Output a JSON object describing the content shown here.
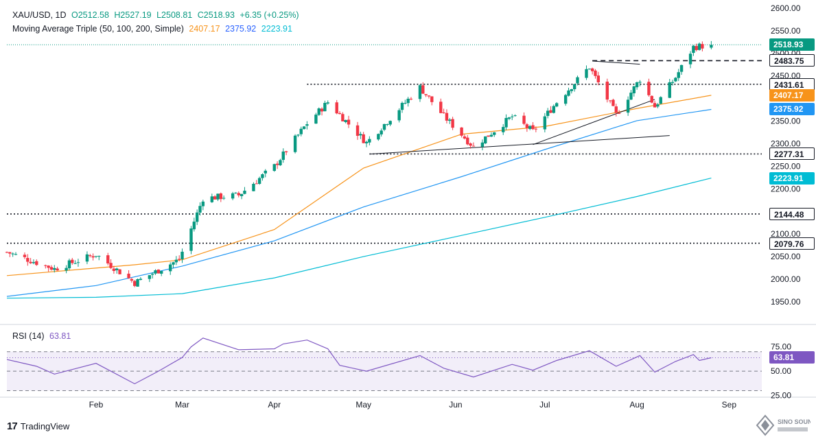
{
  "header": {
    "symbol": "XAU/USD, 1D",
    "open": "O2512.58",
    "high": "H2527.19",
    "low": "L2508.81",
    "close": "C2518.93",
    "change": "+6.35 (+0.25%)",
    "indicator": "Moving Average Triple (50, 100, 200, Simple)",
    "ma50": "2407.17",
    "ma100": "2375.92",
    "ma200": "2223.91"
  },
  "rsi_header": {
    "label": "RSI (14)",
    "value": "63.81"
  },
  "badges": [
    {
      "text": "2518.93",
      "price": 2518.93,
      "bg": "#089981",
      "fg": "#ffffff"
    },
    {
      "text": "2483.75",
      "price": 2483.75,
      "bg": "#ffffff",
      "fg": "#131722",
      "border": "#131722"
    },
    {
      "text": "2431.61",
      "price": 2431.61,
      "bg": "#ffffff",
      "fg": "#131722",
      "border": "#131722"
    },
    {
      "text": "2407.17",
      "price": 2407.17,
      "bg": "#f7931a",
      "fg": "#ffffff"
    },
    {
      "text": "2375.92",
      "price": 2375.92,
      "bg": "#2196f3",
      "fg": "#ffffff"
    },
    {
      "text": "2277.31",
      "price": 2277.31,
      "bg": "#ffffff",
      "fg": "#131722",
      "border": "#131722"
    },
    {
      "text": "2223.91",
      "price": 2223.91,
      "bg": "#00bcd4",
      "fg": "#ffffff"
    },
    {
      "text": "2144.48",
      "price": 2144.48,
      "bg": "#ffffff",
      "fg": "#131722",
      "border": "#131722"
    },
    {
      "text": "2079.76",
      "price": 2079.76,
      "bg": "#ffffff",
      "fg": "#131722",
      "border": "#131722"
    }
  ],
  "rsi_badge": {
    "text": "63.81",
    "value": 63.81,
    "bg": "#7e57c2",
    "fg": "#ffffff"
  },
  "footer": {
    "brand": "TradingView",
    "logo_text": "SINO SOUND"
  },
  "colors": {
    "up": "#089981",
    "down": "#f23645",
    "ma50": "#f7931a",
    "ma100": "#2196f3",
    "ma200": "#00bcd4",
    "rsi": "#7e57c2"
  },
  "chart_data": {
    "type": "candlestick",
    "y_ticks": [
      1950,
      2000,
      2050,
      2100,
      2150,
      2200,
      2250,
      2300,
      2350,
      2400,
      2450,
      2500,
      2550,
      2600
    ],
    "y_tick_labels": [
      "1950.00",
      "2000.00",
      "2050.00",
      "2100.00",
      "2150.00",
      "2200.00",
      "2250.00",
      "2300.00",
      "2350.00",
      "2400.00",
      "2450.00",
      "2500.00",
      "2550.00",
      "2600.00"
    ],
    "ylim": [
      1912,
      2612
    ],
    "x_labels": [
      "Feb",
      "Mar",
      "Apr",
      "May",
      "Jun",
      "Jul",
      "Aug",
      "Sep"
    ],
    "x_label_dates": [
      "2024-02-01",
      "2024-03-01",
      "2024-04-01",
      "2024-05-01",
      "2024-06-01",
      "2024-07-01",
      "2024-08-01",
      "2024-09-01"
    ],
    "date_range": [
      "2024-01-02",
      "2024-09-12"
    ],
    "key_closes": [
      {
        "date": "2024-01-02",
        "close": 2060
      },
      {
        "date": "2024-01-18",
        "close": 2023
      },
      {
        "date": "2024-02-01",
        "close": 2055
      },
      {
        "date": "2024-02-14",
        "close": 1992
      },
      {
        "date": "2024-02-29",
        "close": 2044
      },
      {
        "date": "2024-03-08",
        "close": 2179
      },
      {
        "date": "2024-03-20",
        "close": 2186
      },
      {
        "date": "2024-04-01",
        "close": 2250
      },
      {
        "date": "2024-04-12",
        "close": 2345
      },
      {
        "date": "2024-04-19",
        "close": 2392
      },
      {
        "date": "2024-05-02",
        "close": 2302
      },
      {
        "date": "2024-05-20",
        "close": 2425
      },
      {
        "date": "2024-05-28",
        "close": 2361
      },
      {
        "date": "2024-06-07",
        "close": 2293
      },
      {
        "date": "2024-06-20",
        "close": 2360
      },
      {
        "date": "2024-06-27",
        "close": 2327
      },
      {
        "date": "2024-07-05",
        "close": 2392
      },
      {
        "date": "2024-07-16",
        "close": 2470
      },
      {
        "date": "2024-07-25",
        "close": 2364
      },
      {
        "date": "2024-08-02",
        "close": 2443
      },
      {
        "date": "2024-08-07",
        "close": 2382
      },
      {
        "date": "2024-08-14",
        "close": 2447
      },
      {
        "date": "2024-08-20",
        "close": 2514
      },
      {
        "date": "2024-08-26",
        "close": 2518.93
      }
    ],
    "ma50_points": [
      {
        "date": "2024-01-02",
        "v": 2008
      },
      {
        "date": "2024-02-14",
        "v": 2032
      },
      {
        "date": "2024-03-01",
        "v": 2043
      },
      {
        "date": "2024-04-01",
        "v": 2110
      },
      {
        "date": "2024-05-01",
        "v": 2246
      },
      {
        "date": "2024-06-03",
        "v": 2321
      },
      {
        "date": "2024-07-01",
        "v": 2338
      },
      {
        "date": "2024-08-01",
        "v": 2378
      },
      {
        "date": "2024-08-26",
        "v": 2407.17
      }
    ],
    "ma100_points": [
      {
        "date": "2024-01-02",
        "v": 1962
      },
      {
        "date": "2024-02-01",
        "v": 1986
      },
      {
        "date": "2024-03-01",
        "v": 2029
      },
      {
        "date": "2024-04-01",
        "v": 2085
      },
      {
        "date": "2024-05-01",
        "v": 2160
      },
      {
        "date": "2024-06-03",
        "v": 2227
      },
      {
        "date": "2024-07-01",
        "v": 2287
      },
      {
        "date": "2024-08-01",
        "v": 2351
      },
      {
        "date": "2024-08-26",
        "v": 2375.92
      }
    ],
    "ma200_points": [
      {
        "date": "2024-01-02",
        "v": 1958
      },
      {
        "date": "2024-02-01",
        "v": 1960
      },
      {
        "date": "2024-03-01",
        "v": 1968
      },
      {
        "date": "2024-04-01",
        "v": 2003
      },
      {
        "date": "2024-05-01",
        "v": 2050
      },
      {
        "date": "2024-06-03",
        "v": 2097
      },
      {
        "date": "2024-07-01",
        "v": 2137
      },
      {
        "date": "2024-08-01",
        "v": 2183
      },
      {
        "date": "2024-08-26",
        "v": 2223.91
      }
    ],
    "horizontal_levels": [
      {
        "price": 2518.93,
        "style": "dotted-green",
        "from": "2024-01-02"
      },
      {
        "price": 2483.75,
        "style": "dashed",
        "from": "2024-07-17"
      },
      {
        "price": 2431.61,
        "style": "dotted",
        "from": "2024-04-12"
      },
      {
        "price": 2277.31,
        "style": "dotted",
        "from": "2024-05-03"
      },
      {
        "price": 2144.48,
        "style": "dotted",
        "from": "2024-01-02"
      },
      {
        "price": 2079.76,
        "style": "dotted",
        "from": "2024-01-02"
      }
    ],
    "trendlines": [
      {
        "from": {
          "date": "2024-05-03",
          "price": 2277
        },
        "to": {
          "date": "2024-08-12",
          "price": 2318
        }
      },
      {
        "from": {
          "date": "2024-06-27",
          "price": 2298
        },
        "to": {
          "date": "2024-08-07",
          "price": 2398
        }
      },
      {
        "from": {
          "date": "2024-07-17",
          "price": 2483
        },
        "to": {
          "date": "2024-08-02",
          "price": 2476
        }
      }
    ],
    "rsi": {
      "ticks": [
        25,
        50,
        75
      ],
      "tick_labels": [
        "25.00",
        "50.00",
        "75.00"
      ],
      "ylim": [
        24,
        86
      ],
      "bands": [
        30,
        50,
        70
      ],
      "points": [
        {
          "date": "2024-01-02",
          "v": 62
        },
        {
          "date": "2024-01-12",
          "v": 55
        },
        {
          "date": "2024-01-18",
          "v": 47
        },
        {
          "date": "2024-02-01",
          "v": 58
        },
        {
          "date": "2024-02-14",
          "v": 37
        },
        {
          "date": "2024-02-22",
          "v": 50
        },
        {
          "date": "2024-03-01",
          "v": 64
        },
        {
          "date": "2024-03-04",
          "v": 75
        },
        {
          "date": "2024-03-08",
          "v": 84
        },
        {
          "date": "2024-03-20",
          "v": 72
        },
        {
          "date": "2024-04-01",
          "v": 73
        },
        {
          "date": "2024-04-04",
          "v": 78
        },
        {
          "date": "2024-04-12",
          "v": 82
        },
        {
          "date": "2024-04-19",
          "v": 73
        },
        {
          "date": "2024-04-23",
          "v": 56
        },
        {
          "date": "2024-05-02",
          "v": 50
        },
        {
          "date": "2024-05-20",
          "v": 66
        },
        {
          "date": "2024-05-28",
          "v": 53
        },
        {
          "date": "2024-06-07",
          "v": 44
        },
        {
          "date": "2024-06-20",
          "v": 57
        },
        {
          "date": "2024-06-27",
          "v": 51
        },
        {
          "date": "2024-07-05",
          "v": 61
        },
        {
          "date": "2024-07-16",
          "v": 71
        },
        {
          "date": "2024-07-25",
          "v": 55
        },
        {
          "date": "2024-08-02",
          "v": 66
        },
        {
          "date": "2024-08-07",
          "v": 49
        },
        {
          "date": "2024-08-14",
          "v": 60
        },
        {
          "date": "2024-08-20",
          "v": 67
        },
        {
          "date": "2024-08-22",
          "v": 61
        },
        {
          "date": "2024-08-26",
          "v": 63.81
        }
      ]
    }
  }
}
